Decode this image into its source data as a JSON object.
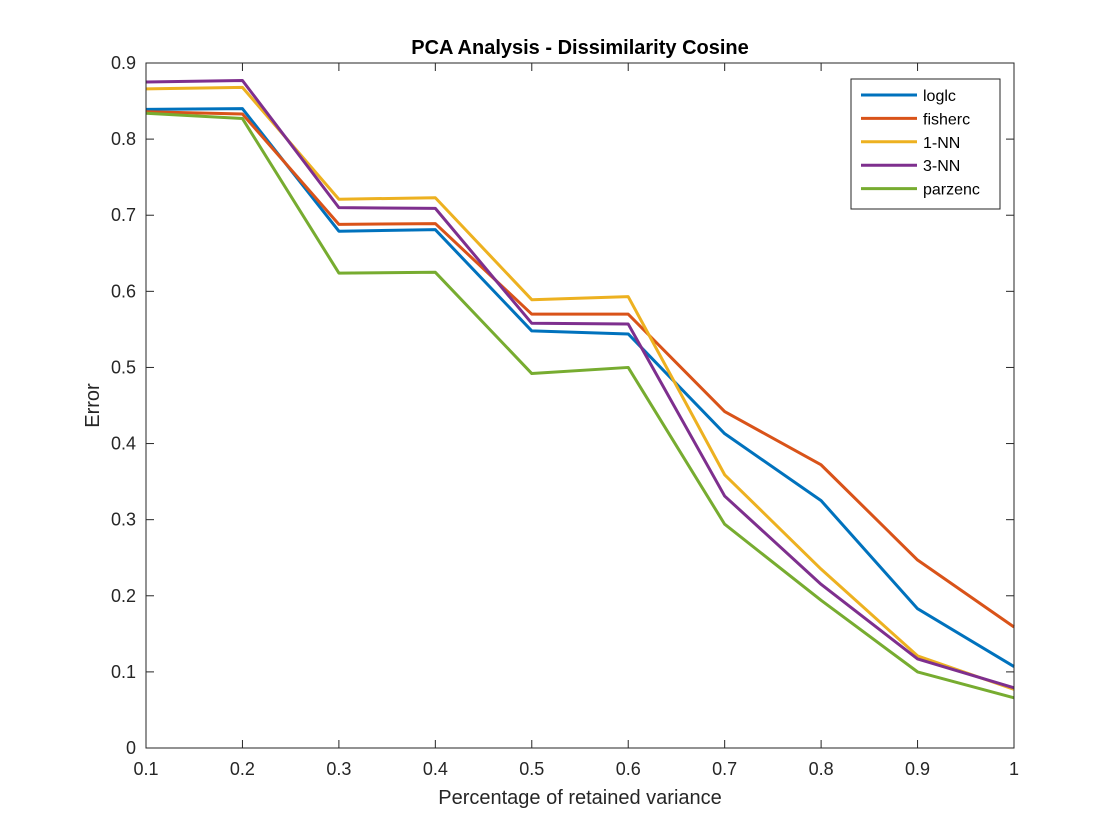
{
  "chart_data": {
    "type": "line",
    "title": "PCA Analysis - Dissimilarity Cosine",
    "xlabel": "Percentage of retained variance",
    "ylabel": "Error",
    "xlim": [
      0.1,
      1
    ],
    "ylim": [
      0,
      0.9
    ],
    "xticks": [
      0.1,
      0.2,
      0.3,
      0.4,
      0.5,
      0.6,
      0.7,
      0.8,
      0.9,
      1
    ],
    "xtick_labels": [
      "0.1",
      "0.2",
      "0.3",
      "0.4",
      "0.5",
      "0.6",
      "0.7",
      "0.8",
      "0.9",
      "1"
    ],
    "yticks": [
      0,
      0.1,
      0.2,
      0.3,
      0.4,
      0.5,
      0.6,
      0.7,
      0.8,
      0.9
    ],
    "ytick_labels": [
      "0",
      "0.1",
      "0.2",
      "0.3",
      "0.4",
      "0.5",
      "0.6",
      "0.7",
      "0.8",
      "0.9"
    ],
    "grid": false,
    "legend_position": "top-right",
    "x": [
      0.1,
      0.2,
      0.3,
      0.4,
      0.5,
      0.6,
      0.7,
      0.8,
      0.9,
      1
    ],
    "series": [
      {
        "name": "loglc",
        "color": "#0072BD",
        "values": [
          0.839,
          0.84,
          0.679,
          0.681,
          0.548,
          0.544,
          0.413,
          0.325,
          0.183,
          0.107
        ]
      },
      {
        "name": "fisherc",
        "color": "#D95319",
        "values": [
          0.836,
          0.833,
          0.688,
          0.689,
          0.57,
          0.57,
          0.442,
          0.372,
          0.247,
          0.159
        ]
      },
      {
        "name": "1-NN",
        "color": "#EDB120",
        "values": [
          0.866,
          0.868,
          0.721,
          0.723,
          0.589,
          0.593,
          0.359,
          0.235,
          0.121,
          0.077
        ]
      },
      {
        "name": "3-NN",
        "color": "#7E2F8E",
        "values": [
          0.875,
          0.877,
          0.71,
          0.709,
          0.558,
          0.557,
          0.331,
          0.215,
          0.117,
          0.079
        ]
      },
      {
        "name": "parzenc",
        "color": "#77AC30",
        "values": [
          0.834,
          0.827,
          0.624,
          0.625,
          0.492,
          0.5,
          0.294,
          0.194,
          0.1,
          0.066
        ]
      }
    ]
  }
}
